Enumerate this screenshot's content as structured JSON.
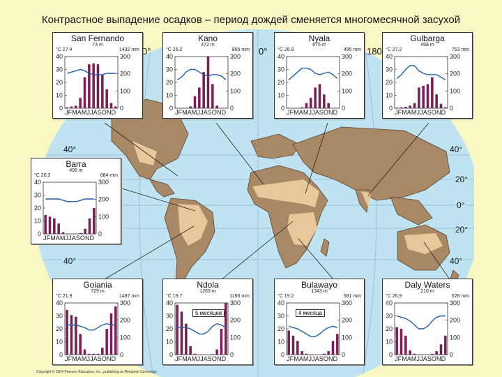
{
  "title": "Контрастное выпадение осадков – период дождей сменяется многомесячной засухой",
  "copyright": "Copyright © 2004 Pearson Education, Inc., publishing as Benjamin Cummings",
  "map": {
    "latitudes": [
      "40°",
      "20°",
      "0°",
      "20°",
      "40°"
    ],
    "longitudes": [
      "0°",
      "0°",
      "180°"
    ]
  },
  "badges": [
    "5 месяцев",
    "4 месяца"
  ],
  "chart_data": [
    {
      "type": "bar",
      "title": "San Fernando",
      "altitude": "73 m",
      "mean_temp": "27.4",
      "annual_precip": "1432",
      "temp_unit": "°C",
      "precip_unit": "mm",
      "months": "J F M A M J J A S O N D",
      "temp_ticks": [
        0,
        10,
        20,
        30,
        40
      ],
      "precip_ticks": [
        0,
        100,
        200,
        300
      ],
      "precip_mm": [
        5,
        10,
        15,
        60,
        180,
        255,
        260,
        255,
        195,
        110,
        30,
        10
      ],
      "temp_c": [
        27,
        28,
        29,
        30,
        29,
        27,
        26,
        26,
        26,
        27,
        27,
        27
      ]
    },
    {
      "type": "bar",
      "title": "Kano",
      "altitude": "472 m",
      "mean_temp": "26.2",
      "annual_precip": "866",
      "temp_unit": "°C",
      "precip_unit": "mm",
      "months": "J F M A M J J A S O N D",
      "temp_ticks": [
        0,
        10,
        20,
        30,
        40
      ],
      "precip_ticks": [
        0,
        100,
        200,
        300
      ],
      "precip_mm": [
        0,
        0,
        2,
        10,
        70,
        120,
        210,
        310,
        140,
        15,
        0,
        0
      ],
      "temp_c": [
        22,
        24,
        28,
        30,
        30,
        28,
        26,
        25,
        26,
        26,
        25,
        22
      ]
    },
    {
      "type": "bar",
      "title": "Nyala",
      "altitude": "675 m",
      "mean_temp": "26.9",
      "annual_precip": "495",
      "temp_unit": "°C",
      "precip_unit": "mm",
      "months": "J F M A M J J A S O N D",
      "temp_ticks": [
        0,
        10,
        20,
        30,
        40
      ],
      "precip_ticks": [
        0,
        100,
        200,
        300
      ],
      "precip_mm": [
        0,
        0,
        0,
        5,
        30,
        60,
        120,
        140,
        80,
        30,
        0,
        0
      ],
      "temp_c": [
        22,
        25,
        28,
        31,
        31,
        30,
        27,
        26,
        27,
        28,
        26,
        23
      ]
    },
    {
      "type": "bar",
      "title": "Gulbarga",
      "altitude": "458 m",
      "mean_temp": "27.2",
      "annual_precip": "753",
      "temp_unit": "°C",
      "precip_unit": "mm",
      "months": "J F M A M J J A S O N D",
      "temp_ticks": [
        0,
        10,
        20,
        30,
        40
      ],
      "precip_ticks": [
        0,
        100,
        200,
        300
      ],
      "precip_mm": [
        3,
        5,
        8,
        15,
        30,
        120,
        130,
        140,
        180,
        80,
        25,
        5
      ],
      "temp_c": [
        23,
        26,
        30,
        33,
        33,
        29,
        27,
        26,
        26,
        26,
        24,
        22
      ]
    },
    {
      "type": "bar",
      "title": "Barra",
      "altitude": "408 m",
      "mean_temp": "26.3",
      "annual_precip": "684",
      "temp_unit": "°C",
      "precip_unit": "mm",
      "months": "J F M A M J J A S O N D",
      "temp_ticks": [
        0,
        10,
        20,
        30,
        40
      ],
      "precip_ticks": [
        0,
        100,
        200,
        300
      ],
      "precip_mm": [
        110,
        100,
        90,
        60,
        10,
        2,
        1,
        1,
        5,
        30,
        90,
        150
      ],
      "temp_c": [
        27,
        27,
        27,
        27,
        26,
        25,
        25,
        25,
        26,
        27,
        27,
        27
      ]
    },
    {
      "type": "bar",
      "title": "Goiania",
      "altitude": "729 m",
      "mean_temp": "21.9",
      "annual_precip": "1487",
      "temp_unit": "°C",
      "precip_unit": "mm",
      "months": "J F M A M J J A S O N D",
      "temp_ticks": [
        0,
        10,
        20,
        30,
        40
      ],
      "precip_ticks": [
        0,
        100,
        200,
        300
      ],
      "precip_mm": [
        260,
        230,
        220,
        120,
        30,
        5,
        5,
        5,
        40,
        150,
        240,
        280
      ],
      "temp_c": [
        23,
        23,
        23,
        22,
        21,
        19,
        19,
        21,
        23,
        24,
        23,
        23
      ]
    },
    {
      "type": "bar",
      "title": "Ndola",
      "altitude": "1269 m",
      "mean_temp": "19.7",
      "annual_precip": "1166",
      "temp_unit": "°C",
      "precip_unit": "mm",
      "months": "J F M A M J J A S O N D",
      "temp_ticks": [
        0,
        10,
        20,
        30,
        40
      ],
      "precip_ticks": [
        0,
        100,
        200,
        300
      ],
      "precip_mm": [
        290,
        250,
        180,
        50,
        5,
        0,
        0,
        0,
        3,
        30,
        150,
        300
      ],
      "temp_c": [
        21,
        21,
        21,
        20,
        18,
        16,
        16,
        18,
        22,
        24,
        23,
        21
      ]
    },
    {
      "type": "bar",
      "title": "Bulawayo",
      "altitude": "1343 m",
      "mean_temp": "19.2",
      "annual_precip": "581",
      "temp_unit": "°C",
      "precip_unit": "mm",
      "months": "J F M A M J J A S O N D",
      "temp_ticks": [
        0,
        10,
        20,
        30,
        40
      ],
      "precip_ticks": [
        0,
        100,
        200,
        300
      ],
      "precip_mm": [
        140,
        110,
        80,
        20,
        5,
        2,
        0,
        0,
        5,
        20,
        80,
        120
      ],
      "temp_c": [
        22,
        21,
        20,
        18,
        16,
        14,
        14,
        16,
        19,
        21,
        22,
        21
      ]
    },
    {
      "type": "bar",
      "title": "Daly Waters",
      "altitude": "210 m",
      "mean_temp": "26.9",
      "annual_precip": "628",
      "temp_unit": "°C",
      "precip_unit": "mm",
      "months": "J F M A M J J A S O N D",
      "temp_ticks": [
        0,
        10,
        20,
        30,
        40
      ],
      "precip_ticks": [
        0,
        100,
        200,
        300
      ],
      "precip_mm": [
        160,
        150,
        110,
        25,
        5,
        2,
        1,
        1,
        5,
        20,
        60,
        110
      ],
      "temp_c": [
        30,
        29,
        28,
        26,
        23,
        20,
        20,
        22,
        26,
        29,
        30,
        30
      ]
    }
  ]
}
